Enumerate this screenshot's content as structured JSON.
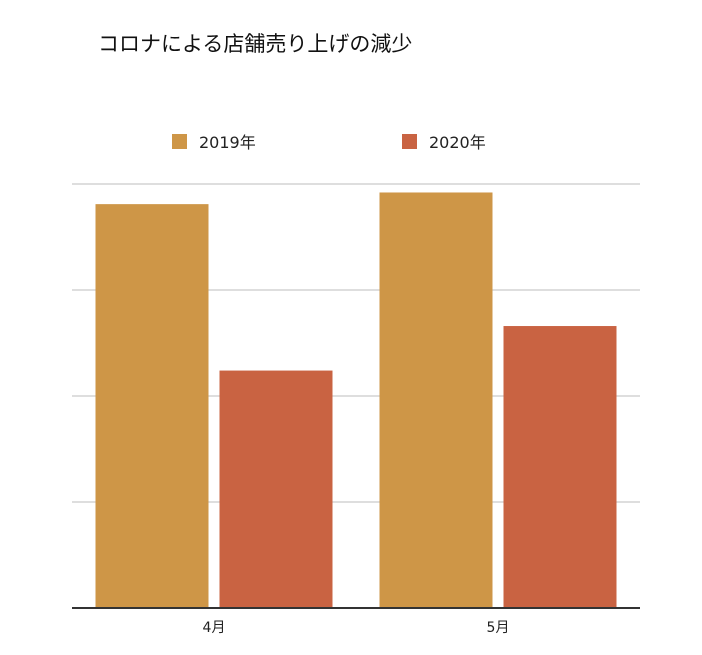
{
  "chart_data": {
    "type": "bar",
    "title": "コロナによる店舗売り上げの減少",
    "categories": [
      "4月",
      "5月"
    ],
    "series": [
      {
        "name": "2019年",
        "values": [
          3.81,
          3.92
        ],
        "color": "#CE9647"
      },
      {
        "name": "2020年",
        "values": [
          2.24,
          2.66
        ],
        "color": "#C96342"
      }
    ],
    "xlabel": "",
    "ylabel": "",
    "ylim": [
      0,
      4
    ],
    "yticks": [
      0,
      1,
      2,
      3,
      4
    ],
    "grid": true,
    "legend": "top"
  }
}
